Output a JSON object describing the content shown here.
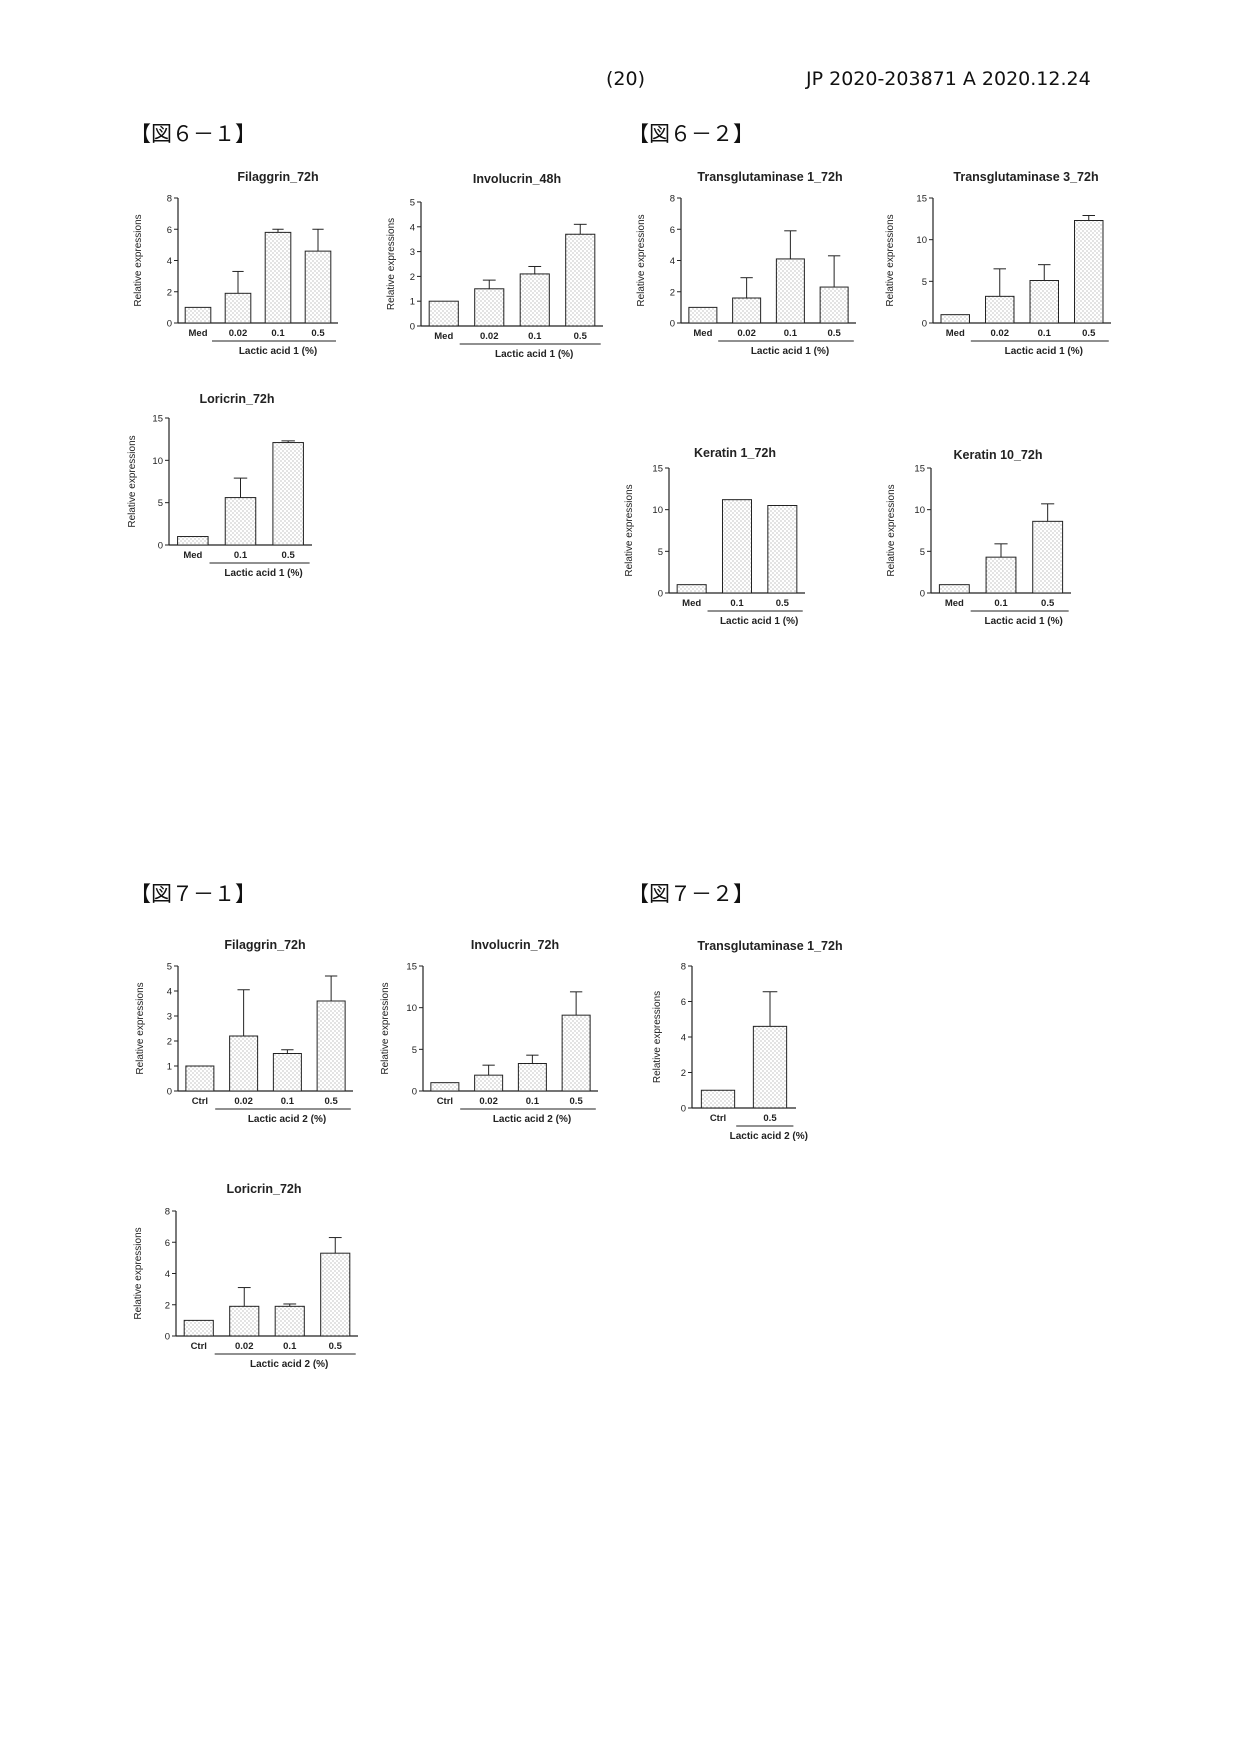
{
  "header": {
    "page_number": "(20)",
    "doc_id": "JP 2020-203871 A  2020.12.24"
  },
  "figures": {
    "fig6_1": "【図６－１】",
    "fig6_2": "【図６－２】",
    "fig7_1": "【図７－１】",
    "fig7_2": "【図７－２】"
  },
  "chart_data": [
    {
      "type": "bar",
      "title": "Filaggrin_72h",
      "ylabel": "Relative expressions",
      "xlabel": "Lactic acid 1 (%)",
      "categories": [
        "Med",
        "0.02",
        "0.1",
        "0.5"
      ],
      "values": [
        1.0,
        1.9,
        5.8,
        4.6
      ],
      "error": [
        0,
        1.4,
        0.2,
        1.4
      ],
      "ylim": [
        0,
        8
      ],
      "yticks": [
        0,
        2,
        4,
        6,
        8
      ],
      "grid": false
    },
    {
      "type": "bar",
      "title": "Involucrin_48h",
      "ylabel": "Relative expressions",
      "xlabel": "Lactic acid 1 (%)",
      "categories": [
        "Med",
        "0.02",
        "0.1",
        "0.5"
      ],
      "values": [
        1.0,
        1.5,
        2.1,
        3.7
      ],
      "error": [
        0,
        0.35,
        0.3,
        0.4
      ],
      "ylim": [
        0,
        5
      ],
      "yticks": [
        0,
        1,
        2,
        3,
        4,
        5
      ],
      "grid": false
    },
    {
      "type": "bar",
      "title": "Loricrin_72h",
      "ylabel": "Relative expressions",
      "xlabel": "Lactic acid 1 (%)",
      "categories": [
        "Med",
        "0.1",
        "0.5"
      ],
      "values": [
        1.0,
        5.6,
        12.1
      ],
      "error": [
        0,
        2.3,
        0.2
      ],
      "ylim": [
        0,
        15
      ],
      "yticks": [
        0,
        5,
        10,
        15
      ],
      "grid": false
    },
    {
      "type": "bar",
      "title": "Transglutaminase 1_72h",
      "ylabel": "Relative expressions",
      "xlabel": "Lactic acid 1 (%)",
      "categories": [
        "Med",
        "0.02",
        "0.1",
        "0.5"
      ],
      "values": [
        1.0,
        1.6,
        4.1,
        2.3
      ],
      "error": [
        0,
        1.3,
        1.8,
        2.0
      ],
      "ylim": [
        0,
        8
      ],
      "yticks": [
        0,
        2,
        4,
        6,
        8
      ],
      "grid": false
    },
    {
      "type": "bar",
      "title": "Transglutaminase 3_72h",
      "ylabel": "Relative expressions",
      "xlabel": "Lactic acid 1 (%)",
      "categories": [
        "Med",
        "0.02",
        "0.1",
        "0.5"
      ],
      "values": [
        1.0,
        3.2,
        5.1,
        12.3
      ],
      "error": [
        0,
        3.3,
        1.9,
        0.6
      ],
      "ylim": [
        0,
        15
      ],
      "yticks": [
        0,
        5,
        10,
        15
      ],
      "grid": false
    },
    {
      "type": "bar",
      "title": "Keratin 1_72h",
      "ylabel": "Relative expressions",
      "xlabel": "Lactic acid 1 (%)",
      "categories": [
        "Med",
        "0.1",
        "0.5"
      ],
      "values": [
        1.0,
        11.2,
        10.5
      ],
      "error": [
        0,
        0,
        0
      ],
      "ylim": [
        0,
        15
      ],
      "yticks": [
        0,
        5,
        10,
        15
      ],
      "grid": false
    },
    {
      "type": "bar",
      "title": "Keratin 10_72h",
      "ylabel": "Relative expressions",
      "xlabel": "Lactic acid 1 (%)",
      "categories": [
        "Med",
        "0.1",
        "0.5"
      ],
      "values": [
        1.0,
        4.3,
        8.6
      ],
      "error": [
        0,
        1.6,
        2.1
      ],
      "ylim": [
        0,
        15
      ],
      "yticks": [
        0,
        5,
        10,
        15
      ],
      "grid": false
    },
    {
      "type": "bar",
      "title": "Filaggrin_72h",
      "ylabel": "Relative expressions",
      "xlabel": "Lactic acid 2 (%)",
      "categories": [
        "Ctrl",
        "0.02",
        "0.1",
        "0.5"
      ],
      "values": [
        1.0,
        2.2,
        1.5,
        3.6
      ],
      "error": [
        0,
        1.85,
        0.15,
        1.0
      ],
      "ylim": [
        0,
        5
      ],
      "yticks": [
        0,
        1,
        2,
        3,
        4,
        5
      ],
      "grid": false
    },
    {
      "type": "bar",
      "title": "Involucrin_72h",
      "ylabel": "Relative expressions",
      "xlabel": "Lactic acid 2 (%)",
      "categories": [
        "Ctrl",
        "0.02",
        "0.1",
        "0.5"
      ],
      "values": [
        1.0,
        1.9,
        3.3,
        9.1
      ],
      "error": [
        0,
        1.2,
        1.0,
        2.8
      ],
      "ylim": [
        0,
        15
      ],
      "yticks": [
        0,
        5,
        10,
        15
      ],
      "grid": false
    },
    {
      "type": "bar",
      "title": "Transglutaminase 1_72h",
      "ylabel": "Relative expressions",
      "xlabel": "Lactic acid 2 (%)",
      "categories": [
        "Ctrl",
        "0.5"
      ],
      "values": [
        1.0,
        4.6
      ],
      "error": [
        0,
        1.95
      ],
      "ylim": [
        0,
        8
      ],
      "yticks": [
        0,
        2,
        4,
        6,
        8
      ],
      "grid": false
    },
    {
      "type": "bar",
      "title": "Loricrin_72h",
      "ylabel": "Relative expressions",
      "xlabel": "Lactic acid 2 (%)",
      "categories": [
        "Ctrl",
        "0.02",
        "0.1",
        "0.5"
      ],
      "values": [
        1.0,
        1.9,
        1.9,
        5.3
      ],
      "error": [
        0,
        1.2,
        0.15,
        1.0
      ],
      "ylim": [
        0,
        8
      ],
      "yticks": [
        0,
        2,
        4,
        6,
        8
      ],
      "grid": false
    }
  ]
}
